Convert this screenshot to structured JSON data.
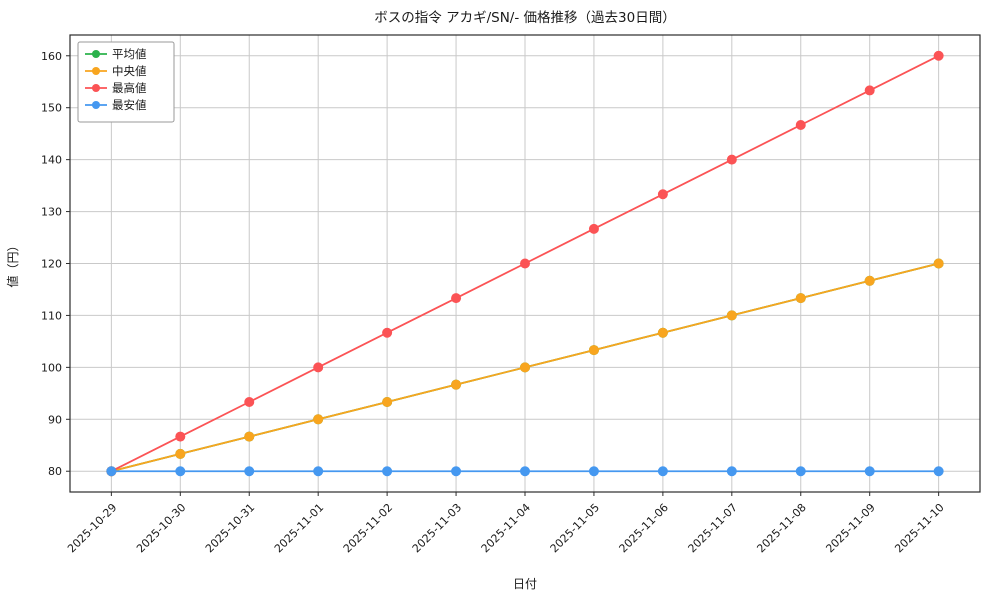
{
  "chart_data": {
    "type": "line",
    "title": "ボスの指令 アカギ/SN/- 価格推移（過去30日間）",
    "xlabel": "日付",
    "ylabel": "値（円）",
    "categories": [
      "2025-10-29",
      "2025-10-30",
      "2025-10-31",
      "2025-11-01",
      "2025-11-02",
      "2025-11-03",
      "2025-11-04",
      "2025-11-05",
      "2025-11-06",
      "2025-11-07",
      "2025-11-08",
      "2025-11-09",
      "2025-11-10"
    ],
    "series": [
      {
        "name": "平均値",
        "color": "#2bb24c",
        "values": [
          80,
          83.33,
          86.67,
          90,
          93.33,
          96.67,
          100,
          103.33,
          106.67,
          110,
          113.33,
          116.67,
          120
        ]
      },
      {
        "name": "中央値",
        "color": "#f8a51f",
        "values": [
          80,
          83.33,
          86.67,
          90,
          93.33,
          96.67,
          100,
          103.33,
          106.67,
          110,
          113.33,
          116.67,
          120
        ]
      },
      {
        "name": "最高値",
        "color": "#fb5355",
        "values": [
          80,
          86.67,
          93.33,
          100,
          106.67,
          113.33,
          120,
          126.67,
          133.33,
          140,
          146.67,
          153.33,
          160
        ]
      },
      {
        "name": "最安値",
        "color": "#4598f0",
        "values": [
          80,
          80,
          80,
          80,
          80,
          80,
          80,
          80,
          80,
          80,
          80,
          80,
          80
        ]
      }
    ],
    "ylim": [
      76,
      164
    ],
    "yticks": [
      80,
      90,
      100,
      110,
      120,
      130,
      140,
      150,
      160
    ],
    "grid": true,
    "legend_position": "upper-left",
    "marker": "circle",
    "colors": {
      "grid": "#c9c9c9",
      "axis": "#2b2b2b",
      "legend_border": "#9a9a9a",
      "legend_bg": "#ffffff",
      "text": "#1a1a1a"
    }
  }
}
